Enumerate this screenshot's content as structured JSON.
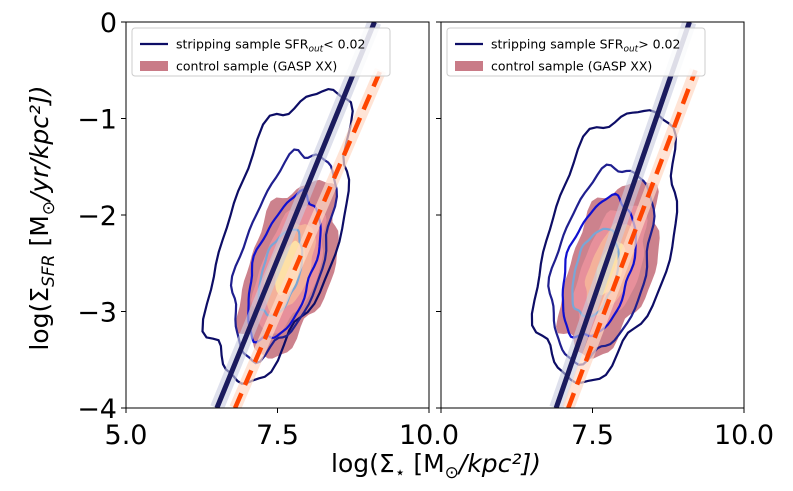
{
  "chart_data": [
    {
      "type": "contour",
      "xlim": [
        5.0,
        10.0
      ],
      "ylim": [
        -4,
        0
      ],
      "xticks": [
        5.0,
        7.5,
        10.0
      ],
      "yticks": [
        0,
        -1,
        -2,
        -3,
        -4
      ],
      "xtick_labels": [
        "5.0",
        "7.5",
        "10.0"
      ],
      "ytick_labels": [
        "0",
        "−1",
        "−2",
        "−3",
        "−4"
      ],
      "legend": [
        {
          "label_main": "stripping sample SFR",
          "label_sub": "out",
          "label_tail": "< 0.02",
          "style": "line",
          "color": "#0d0d66"
        },
        {
          "label_main": "control sample (GASP XX)",
          "style": "patch",
          "color": "#c97b87"
        }
      ],
      "fit_lines": [
        {
          "name": "stripping fit",
          "style": "solid",
          "color": "#1b1b5e",
          "x": [
            6.5,
            9.1
          ],
          "y": [
            -4.0,
            0.0
          ]
        },
        {
          "name": "control fit",
          "style": "dashed",
          "color": "#ff4500",
          "x": [
            6.8,
            9.2
          ],
          "y": [
            -4.0,
            -0.5
          ]
        }
      ]
    },
    {
      "type": "contour",
      "xlim": [
        5.0,
        10.0
      ],
      "ylim": [
        -4,
        0
      ],
      "xticks": [
        5.0,
        7.5,
        10.0
      ],
      "yticks": [
        0,
        -1,
        -2,
        -3,
        -4
      ],
      "xtick_labels": [
        "",
        "7.5",
        "10.0"
      ],
      "ytick_labels": [
        "",
        "",
        "",
        "",
        ""
      ],
      "legend": [
        {
          "label_main": "stripping sample SFR",
          "label_sub": "out",
          "label_tail": "> 0.02",
          "style": "line",
          "color": "#0d0d66"
        },
        {
          "label_main": "control sample (GASP XX)",
          "style": "patch",
          "color": "#c97b87"
        }
      ],
      "fit_lines": [
        {
          "name": "stripping fit",
          "style": "solid",
          "color": "#1b1b5e",
          "x": [
            6.9,
            9.1
          ],
          "y": [
            -4.0,
            0.0
          ]
        },
        {
          "name": "control fit",
          "style": "dashed",
          "color": "#ff4500",
          "x": [
            7.1,
            9.2
          ],
          "y": [
            -4.0,
            -0.5
          ]
        }
      ]
    }
  ],
  "axes": {
    "ylabel_main": "log(Σ",
    "ylabel_sub": "SFR",
    "ylabel_tail": " [M",
    "ylabel_sun": "⊙",
    "ylabel_end": "/yr/kpc²])",
    "xlabel_main": "log(Σ",
    "xlabel_sub": "⋆",
    "xlabel_tail": " [M",
    "xlabel_sun": "⊙",
    "xlabel_end": "/kpc²])"
  },
  "colors": {
    "control_fill_outer": "#c97b87",
    "control_fill_mid": "#e8909c",
    "control_fill_inner": "#f4b39a",
    "control_fill_core": "#fde3a6",
    "contour_outer": "#0d0d66",
    "contour_mid": "#1f1f8f",
    "contour_blue": "#1010d0",
    "contour_inner": "#7aa6d6"
  }
}
